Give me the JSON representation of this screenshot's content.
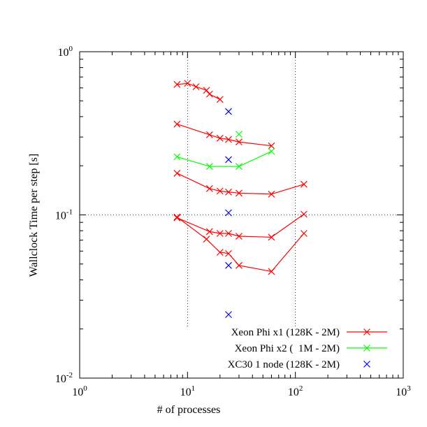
{
  "chart_data": {
    "type": "line",
    "xlabel": "# of processes",
    "ylabel": "Wallclock Time per step [s]",
    "xscale": "log",
    "yscale": "log",
    "xlim": [
      1,
      1000
    ],
    "ylim": [
      0.01,
      1
    ],
    "x_tick_labels": [
      {
        "base": "10",
        "exp": "0"
      },
      {
        "base": "10",
        "exp": "1"
      },
      {
        "base": "10",
        "exp": "2"
      },
      {
        "base": "10",
        "exp": "3"
      }
    ],
    "y_tick_labels": [
      {
        "base": "10",
        "exp": "-2"
      },
      {
        "base": "10",
        "exp": "-1"
      },
      {
        "base": "10",
        "exp": "0"
      }
    ],
    "grid": "major only (dotted)",
    "legend_position": "bottom-right",
    "series": [
      {
        "name": "Xeon Phi x1 (128K - 2M)",
        "color": "#ff0000",
        "marker": "x",
        "line": true,
        "groups": [
          {
            "x": [
              8,
              10,
              12,
              15,
              16,
              20
            ],
            "y": [
              0.63,
              0.64,
              0.61,
              0.58,
              0.55,
              0.51
            ]
          },
          {
            "x": [
              8,
              16,
              20,
              24,
              30,
              60
            ],
            "y": [
              0.36,
              0.31,
              0.295,
              0.29,
              0.28,
              0.265
            ]
          },
          {
            "x": [
              8,
              16,
              20,
              24,
              30,
              60,
              120
            ],
            "y": [
              0.18,
              0.145,
              0.14,
              0.138,
              0.136,
              0.134,
              0.154
            ]
          },
          {
            "x": [
              8,
              16,
              20,
              24,
              30,
              60,
              120
            ],
            "y": [
              0.096,
              0.079,
              0.077,
              0.077,
              0.074,
              0.073,
              0.101
            ]
          },
          {
            "x": [
              8,
              15,
              20,
              24,
              30,
              60,
              120
            ],
            "y": [
              0.097,
              0.071,
              0.059,
              0.058,
              0.049,
              0.045,
              0.077
            ]
          }
        ]
      },
      {
        "name": "Xeon Phi x2 (  1M - 2M)",
        "color": "#00ff00",
        "marker": "x",
        "line": true,
        "groups": [
          {
            "x": [
              8,
              16,
              30,
              60
            ],
            "y": [
              0.227,
              0.198,
              0.198,
              0.245
            ]
          },
          {
            "x": [
              30
            ],
            "y": [
              0.312
            ]
          }
        ]
      },
      {
        "name": "XC30 1 node (128K - 2M)",
        "color": "#0000ff",
        "marker": "x",
        "line": false,
        "groups": [
          {
            "x": [
              24,
              24,
              24,
              24,
              24
            ],
            "y": [
              0.43,
              0.218,
              0.103,
              0.049,
              0.0245
            ]
          }
        ]
      }
    ]
  }
}
